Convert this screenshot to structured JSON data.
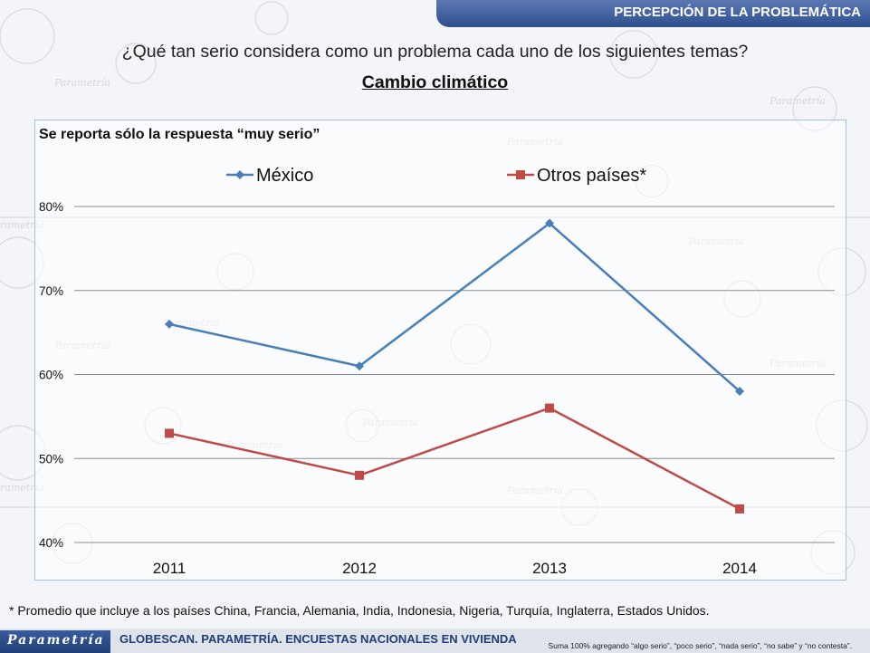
{
  "header": {
    "title": "PERCEPCIÓN DE LA PROBLEMÁTICA"
  },
  "question": "¿Qué tan serio considera como un problema cada uno de los siguientes temas?",
  "subject": "Cambio climático",
  "note": "Se reporta sólo la respuesta “muy serio”",
  "footnote": "* Promedio que incluye a los países China, Francia, Alemania, India, Indonesia, Nigeria, Turquía, Inglaterra, Estados Unidos.",
  "footer": {
    "logo": "Parametría",
    "title": "GLOBESCAN. PARAMETRÍA. ENCUESTAS NACIONALES EN VIVIENDA",
    "note": "Suma 100%  agregando “algo serio”, “poco serio”, “nada serio”, “no sabe” y “no contesta”."
  },
  "chart_data": {
    "type": "line",
    "categories": [
      "2011",
      "2012",
      "2013",
      "2014"
    ],
    "series": [
      {
        "name": "México",
        "values": [
          66,
          61,
          78,
          58
        ],
        "color": "#4a7ebb",
        "marker": "diamond"
      },
      {
        "name": "Otros países*",
        "values": [
          53,
          48,
          56,
          44
        ],
        "color": "#be4b48",
        "marker": "square"
      }
    ],
    "ylim": [
      40,
      80
    ],
    "yticks": [
      40,
      50,
      60,
      70,
      80
    ],
    "ytick_labels": [
      "40%",
      "50%",
      "60%",
      "70%",
      "80%"
    ],
    "grid": true,
    "legend": "top"
  }
}
